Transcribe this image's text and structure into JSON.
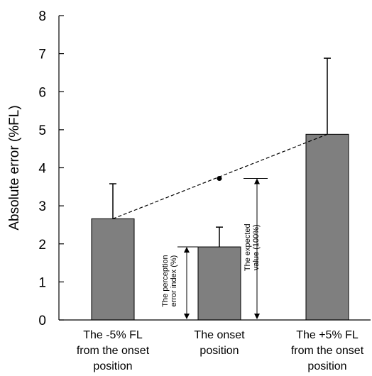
{
  "chart_data": {
    "type": "bar",
    "ylabel": "Absolute error (%FL)",
    "xlabel": "",
    "ylim": [
      0,
      8
    ],
    "yticks": [
      0,
      1,
      2,
      3,
      4,
      5,
      6,
      7,
      8
    ],
    "grid": false,
    "legend": "none",
    "bar_color": "#7f7f7f",
    "categories": [
      [
        "The -5% FL",
        "from the onset",
        "position"
      ],
      [
        "The onset",
        "position"
      ],
      [
        "The +5% FL",
        "from the onset",
        "position"
      ]
    ],
    "values": [
      2.66,
      1.92,
      4.88
    ],
    "error_upper": [
      3.58,
      2.44,
      6.88
    ],
    "dashed_line": {
      "from": [
        0,
        2.66
      ],
      "to": [
        2,
        4.88
      ],
      "expected_point": [
        1,
        3.72
      ]
    },
    "annotations": {
      "perception_error_index": [
        "The perception",
        "error index (%)"
      ],
      "expected_value": [
        "The expected",
        "value (100%)"
      ]
    }
  }
}
